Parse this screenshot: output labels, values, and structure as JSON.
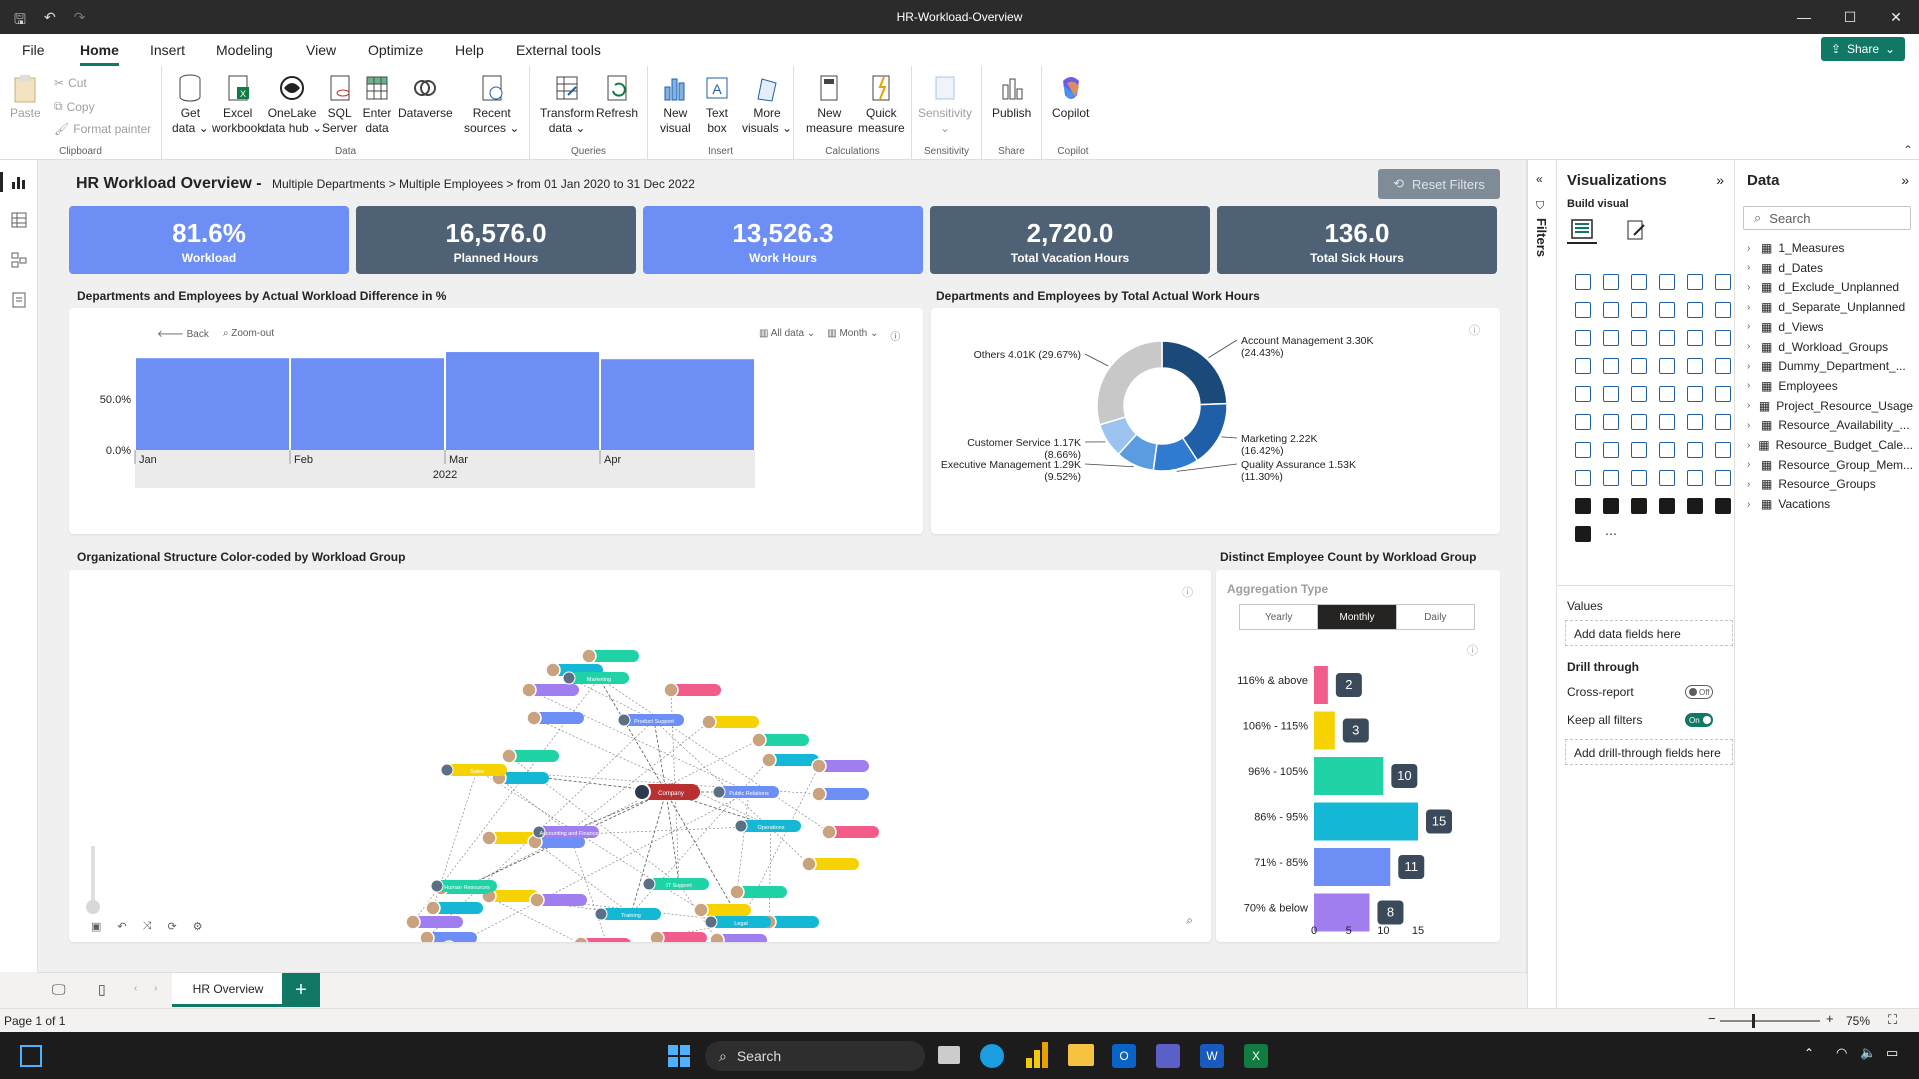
{
  "window": {
    "title": "HR-Workload-Overview"
  },
  "menu": {
    "tabs": [
      "File",
      "Home",
      "Insert",
      "Modeling",
      "View",
      "Optimize",
      "Help",
      "External tools"
    ],
    "active": "Home",
    "share": "Share"
  },
  "ribbon": {
    "clipboard": {
      "paste": "Paste",
      "cut": "Cut",
      "copy": "Copy",
      "format_painter": "Format painter",
      "label": "Clipboard"
    },
    "data": {
      "get_data": [
        "Get",
        "data ⌄"
      ],
      "excel": [
        "Excel",
        "workbook"
      ],
      "onelake": [
        "OneLake",
        "data hub ⌄"
      ],
      "sql": [
        "SQL",
        "Server"
      ],
      "enter": [
        "Enter",
        "data"
      ],
      "dataverse": "Dataverse",
      "recent": [
        "Recent",
        "sources ⌄"
      ],
      "label": "Data"
    },
    "queries": {
      "transform": [
        "Transform",
        "data ⌄"
      ],
      "refresh": "Refresh",
      "label": "Queries"
    },
    "insert": {
      "new_visual": [
        "New",
        "visual"
      ],
      "text_box": [
        "Text",
        "box"
      ],
      "more_visuals": [
        "More",
        "visuals ⌄"
      ],
      "label": "Insert"
    },
    "calculations": {
      "new_measure": [
        "New",
        "measure"
      ],
      "quick_measure": [
        "Quick",
        "measure"
      ],
      "label": "Calculations"
    },
    "sensitivity": {
      "button": [
        "Sensitivity",
        "⌄"
      ],
      "label": "Sensitivity"
    },
    "share": {
      "publish": "Publish",
      "label": "Share"
    },
    "copilot": {
      "button": "Copilot",
      "label": "Copilot"
    }
  },
  "report": {
    "title": "HR Workload Overview -",
    "subtitle": "Multiple Departments > Multiple Employees > from 01 Jan 2020 to 31 Dec 2022",
    "reset_filters": "Reset Filters",
    "kpis": [
      {
        "value": "81.6%",
        "label": "Workload",
        "style": "blue"
      },
      {
        "value": "16,576.0",
        "label": "Planned Hours",
        "style": "slate"
      },
      {
        "value": "13,526.3",
        "label": "Work Hours",
        "style": "blue"
      },
      {
        "value": "2,720.0",
        "label": "Total Vacation Hours",
        "style": "slate"
      },
      {
        "value": "136.0",
        "label": "Total Sick Hours",
        "style": "slate"
      }
    ],
    "bar_visual": {
      "title": "Departments and Employees by Actual Workload Difference in %",
      "back": "Back",
      "zoom_out": "Zoom-out",
      "all_data": "All data ⌄",
      "month": "Month ⌄"
    },
    "donut_visual": {
      "title": "Departments and Employees by Total Actual Work Hours"
    },
    "org_visual": {
      "title": "Organizational Structure Color-coded by Workload Group"
    },
    "count_visual": {
      "title": "Distinct Employee Count by Workload Group",
      "aggregation_label": "Aggregation Type",
      "options": [
        "Yearly",
        "Monthly",
        "Daily"
      ],
      "selected": "Monthly"
    }
  },
  "chart_data": [
    {
      "type": "bar",
      "categories": [
        "Jan",
        "Feb",
        "Mar",
        "Apr"
      ],
      "x_group_label": "2022",
      "values": [
        0.9,
        0.9,
        0.96,
        0.89
      ],
      "value_format": "percent",
      "y_ticks": [
        "50.0%",
        "0.0%"
      ],
      "ylim": [
        0,
        1.0
      ],
      "color": "#6d8ef5"
    },
    {
      "type": "pie",
      "donut": true,
      "slices": [
        {
          "label": "Account Management",
          "value": 3300,
          "display": "3.30K",
          "pct": "(24.43%)",
          "color": "#1a4a7a"
        },
        {
          "label": "Marketing",
          "value": 2220,
          "display": "2.22K",
          "pct": "(16.42%)",
          "color": "#1f5fa8"
        },
        {
          "label": "Quality Assurance",
          "value": 1530,
          "display": "1.53K",
          "pct": "(11.30%)",
          "color": "#2e7bd0"
        },
        {
          "label": "Executive Management",
          "value": 1290,
          "display": "1.29K",
          "pct": "(9.52%)",
          "color": "#5b9be0"
        },
        {
          "label": "Customer Service",
          "value": 1170,
          "display": "1.17K",
          "pct": "(8.66%)",
          "color": "#9cc3ef"
        },
        {
          "label": "Others",
          "value": 4010,
          "display": "4.01K",
          "pct": "(29.67%)",
          "color": "#c8c8c8"
        }
      ]
    },
    {
      "type": "bar",
      "orientation": "horizontal",
      "categories": [
        "116% & above",
        "106% - 115%",
        "96% - 105%",
        "86% - 95%",
        "71% - 85%",
        "70% & below"
      ],
      "values": [
        2,
        3,
        10,
        15,
        11,
        8
      ],
      "colors": [
        "#f25c8a",
        "#f5d200",
        "#1fd3a6",
        "#15b8d4",
        "#6d8ef5",
        "#a07ef0"
      ],
      "x_ticks": [
        0,
        5,
        10,
        15
      ],
      "xlim": [
        0,
        15
      ]
    }
  ],
  "org_nodes": [
    {
      "name": "Company",
      "color": "#b83030"
    },
    {
      "name": "Marketing",
      "color": "#1fd3a6"
    },
    {
      "name": "Product Support",
      "color": "#6d8ef5"
    },
    {
      "name": "Public Relations",
      "color": "#6d8ef5"
    },
    {
      "name": "Operations",
      "color": "#15b8d4"
    },
    {
      "name": "IT Support",
      "color": "#1fd3a6"
    },
    {
      "name": "Accounting and Finance",
      "color": "#a07ef0"
    },
    {
      "name": "Human Resources",
      "color": "#1fd3a6"
    },
    {
      "name": "Training",
      "color": "#15b8d4"
    },
    {
      "name": "Legal",
      "color": "#15b8d4"
    },
    {
      "name": "Sales",
      "color": "#f5d200"
    }
  ],
  "filters_label": "Filters",
  "viz_pane": {
    "title": "Visualizations",
    "build_visual": "Build visual",
    "values": "Values",
    "add_data_fields": "Add data fields here",
    "drill_through": "Drill through",
    "cross_report": "Cross-report",
    "cross_report_state": "Off",
    "keep_all_filters": "Keep all filters",
    "keep_all_filters_state": "On",
    "add_drill": "Add drill-through fields here"
  },
  "data_pane": {
    "title": "Data",
    "search_placeholder": "Search",
    "items": [
      "1_Measures",
      "d_Dates",
      "d_Exclude_Unplanned",
      "d_Separate_Unplanned",
      "d_Views",
      "d_Workload_Groups",
      "Dummy_Department_...",
      "Employees",
      "Project_Resource_Usage",
      "Resource_Availability_...",
      "Resource_Budget_Cale...",
      "Resource_Group_Mem...",
      "Resource_Groups",
      "Vacations"
    ]
  },
  "page_tabs": {
    "current": "HR Overview"
  },
  "status": {
    "page": "Page 1 of 1",
    "zoom": "75%"
  },
  "taskbar": {
    "search": "Search"
  }
}
